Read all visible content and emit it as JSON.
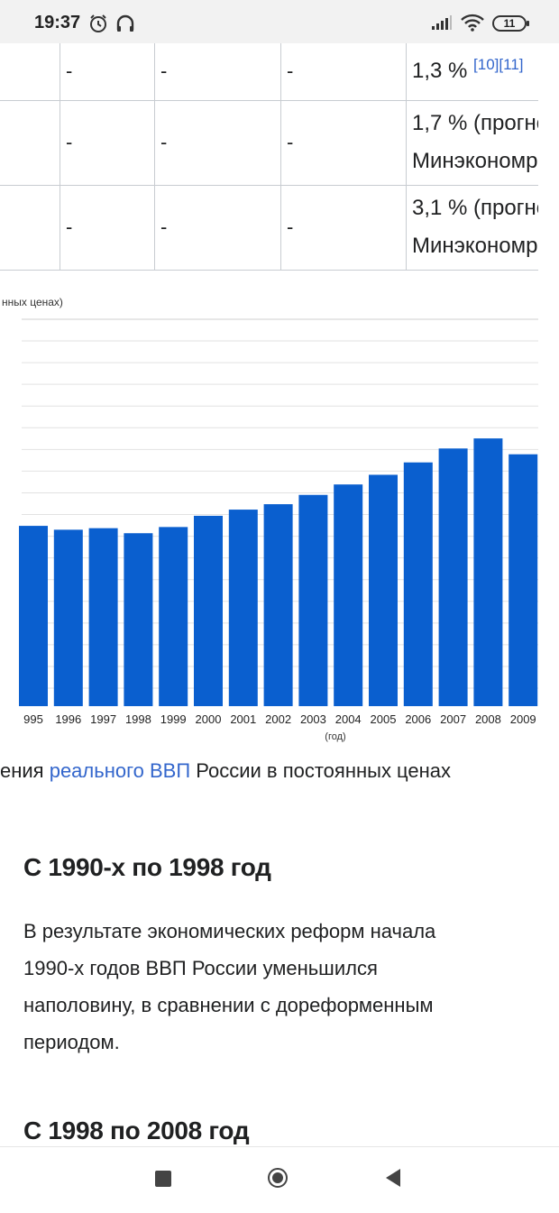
{
  "status": {
    "time": "19:37",
    "battery": "11"
  },
  "table": {
    "rows": [
      {
        "c1": "-",
        "c2": "-",
        "c3": "-",
        "line1": "1,3 %",
        "refs": "[10][11]",
        "line2": ""
      },
      {
        "c1": "-",
        "c2": "-",
        "c3": "-",
        "line1": "1,7 % (прогно",
        "refs": "",
        "line2": "Минэкономр"
      },
      {
        "c1": "-",
        "c2": "-",
        "c3": "-",
        "line1": "3,1 % (прогно",
        "refs": "",
        "line2": "Минэкономр"
      }
    ]
  },
  "chart_data": {
    "type": "bar",
    "title": "нных ценах)",
    "xlabel": "(год)",
    "categories": [
      "995",
      "1996",
      "1997",
      "1998",
      "1999",
      "2000",
      "2001",
      "2002",
      "2003",
      "2004",
      "2005",
      "2006",
      "2007",
      "2008",
      "2009"
    ],
    "values": [
      46.6,
      45.6,
      46.0,
      44.7,
      46.3,
      49.2,
      50.8,
      52.2,
      54.6,
      57.3,
      59.8,
      63.0,
      66.6,
      69.2,
      65.1
    ],
    "ylim": [
      0,
      100
    ],
    "color": "#0a5fcf",
    "grid": true
  },
  "caption": {
    "before": "ения ",
    "link": "реального ВВП",
    "after": " России в постоянных ценах"
  },
  "section1": {
    "heading": "С 1990-х по 1998 год",
    "lines": [
      "В результате экономических реформ начала",
      "1990-х годов ВВП России уменьшился",
      "наполовину, в сравнении с дореформенным",
      "периодом."
    ]
  },
  "section2": {
    "heading": "С 1998 по 2008 год"
  }
}
